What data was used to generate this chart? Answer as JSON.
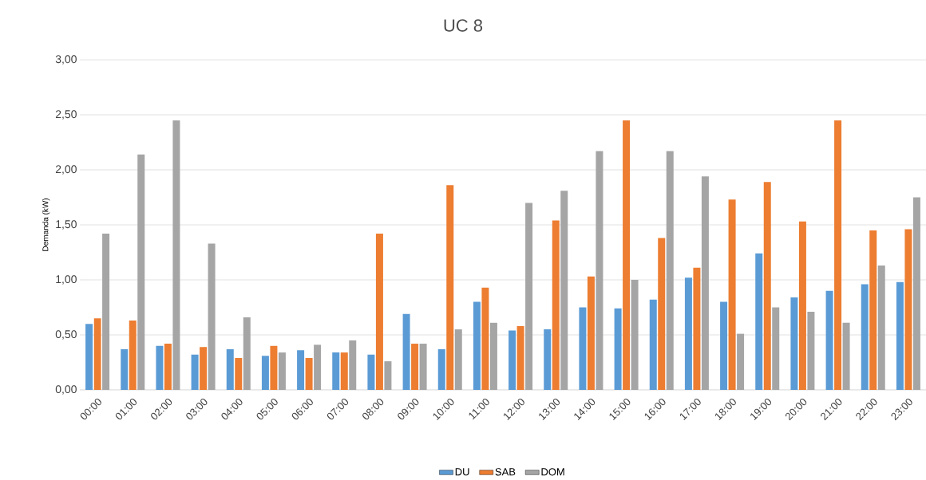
{
  "chart_data": {
    "type": "bar",
    "title": "UC 8",
    "ylabel": "Demanda (kW)",
    "categories": [
      "00:00",
      "01:00",
      "02:00",
      "03:00",
      "04:00",
      "05:00",
      "06:00",
      "07:00",
      "08:00",
      "09:00",
      "10:00",
      "11:00",
      "12:00",
      "13:00",
      "14:00",
      "15:00",
      "16:00",
      "17:00",
      "18:00",
      "19:00",
      "20:00",
      "21:00",
      "22:00",
      "23:00"
    ],
    "series": [
      {
        "name": "DU",
        "color": "#5b9bd5",
        "values": [
          0.6,
          0.37,
          0.4,
          0.32,
          0.37,
          0.31,
          0.36,
          0.34,
          0.32,
          0.69,
          0.37,
          0.8,
          0.54,
          0.55,
          0.75,
          0.74,
          0.82,
          1.02,
          0.8,
          1.24,
          0.84,
          0.9,
          0.96,
          0.98
        ]
      },
      {
        "name": "SAB",
        "color": "#ed7d31",
        "values": [
          0.65,
          0.63,
          0.42,
          0.39,
          0.29,
          0.4,
          0.29,
          0.34,
          1.42,
          0.42,
          1.86,
          0.93,
          0.58,
          1.54,
          1.03,
          2.45,
          1.38,
          1.11,
          1.73,
          1.89,
          1.53,
          2.45,
          1.45,
          1.46
        ]
      },
      {
        "name": "DOM",
        "color": "#a5a5a5",
        "values": [
          1.42,
          2.14,
          2.45,
          1.33,
          0.66,
          0.34,
          0.41,
          0.45,
          0.26,
          0.42,
          0.55,
          0.61,
          1.7,
          1.81,
          2.17,
          1.0,
          2.17,
          1.94,
          0.51,
          0.75,
          0.71,
          0.61,
          1.13,
          1.75
        ]
      }
    ],
    "ylim": [
      0,
      3
    ],
    "yticks": [
      {
        "value": 0,
        "label": "0,00"
      },
      {
        "value": 0.5,
        "label": "0,50"
      },
      {
        "value": 1,
        "label": "1,00"
      },
      {
        "value": 1.5,
        "label": "1,50"
      },
      {
        "value": 2,
        "label": "2,00"
      },
      {
        "value": 2.5,
        "label": "2,50"
      },
      {
        "value": 3,
        "label": "3,00"
      }
    ],
    "grid": "y",
    "legend": "bottom"
  }
}
